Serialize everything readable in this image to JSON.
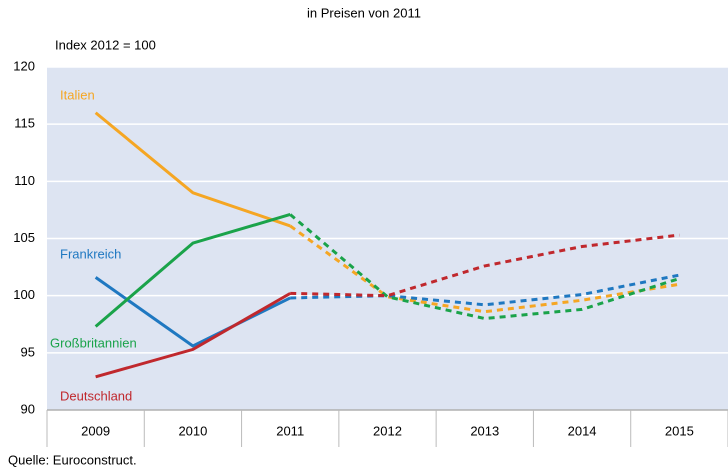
{
  "chart_data": {
    "type": "line",
    "title": "in Preisen von 2011",
    "y_label": "Index 2012 = 100",
    "source": "Quelle: Euroconstruct.",
    "categories": [
      "2009",
      "2010",
      "2011",
      "2012",
      "2013",
      "2014",
      "2015"
    ],
    "dashed_from": "2011",
    "ylim": [
      90,
      120
    ],
    "yticks": [
      90,
      95,
      100,
      105,
      110,
      115,
      120
    ],
    "grid": true,
    "series": [
      {
        "name": "Italien",
        "color": "#f5a623",
        "values": [
          116,
          109,
          106.1,
          99.9,
          98.6,
          99.6,
          101
        ]
      },
      {
        "name": "Frankreich",
        "color": "#1f78c1",
        "values": [
          101.6,
          95.6,
          99.8,
          100,
          99.2,
          100.1,
          101.8
        ]
      },
      {
        "name": "Großbritannien",
        "color": "#1aa34a",
        "values": [
          97.3,
          104.6,
          107.1,
          99.9,
          98,
          98.8,
          101.5
        ]
      },
      {
        "name": "Deutschland",
        "color": "#c0282d",
        "values": [
          92.9,
          95.3,
          100.2,
          100,
          102.6,
          104.3,
          105.3
        ]
      }
    ]
  }
}
